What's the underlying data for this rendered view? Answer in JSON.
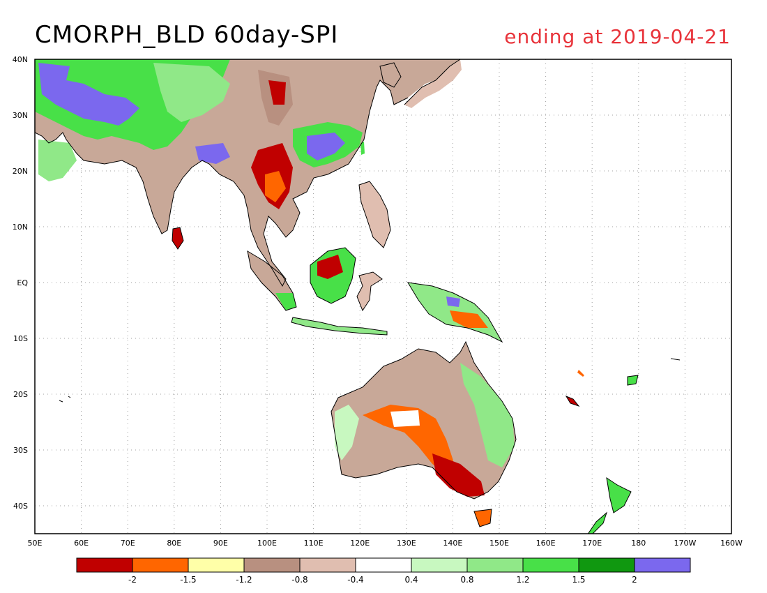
{
  "title": "CMORPH_BLD 60day-SPI",
  "subtitle": "ending at 2019-04-21",
  "map": {
    "lon_labels": [
      "50E",
      "60E",
      "70E",
      "80E",
      "90E",
      "100E",
      "110E",
      "120E",
      "130E",
      "140E",
      "150E",
      "160E",
      "170E",
      "180",
      "170W",
      "160W"
    ],
    "lat_labels": [
      "40N",
      "30N",
      "20N",
      "10N",
      "EQ",
      "10S",
      "20S",
      "30S",
      "40S"
    ]
  },
  "legend": {
    "colors": [
      "#c00000",
      "#ff6600",
      "#ffffa8",
      "#b89080",
      "#e0beb0",
      "#ffffff",
      "#c8f8c0",
      "#90e888",
      "#48e048",
      "#109810",
      "#7b68ee"
    ],
    "labels": [
      "-2",
      "-1.5",
      "-1.2",
      "-0.8",
      "-0.4",
      "0.4",
      "0.8",
      "1.2",
      "1.5",
      "2"
    ]
  },
  "colors": {
    "title": "#000000",
    "subtitle": "#e8333a",
    "coast": "#000000",
    "grid": "#a0a0a0"
  }
}
